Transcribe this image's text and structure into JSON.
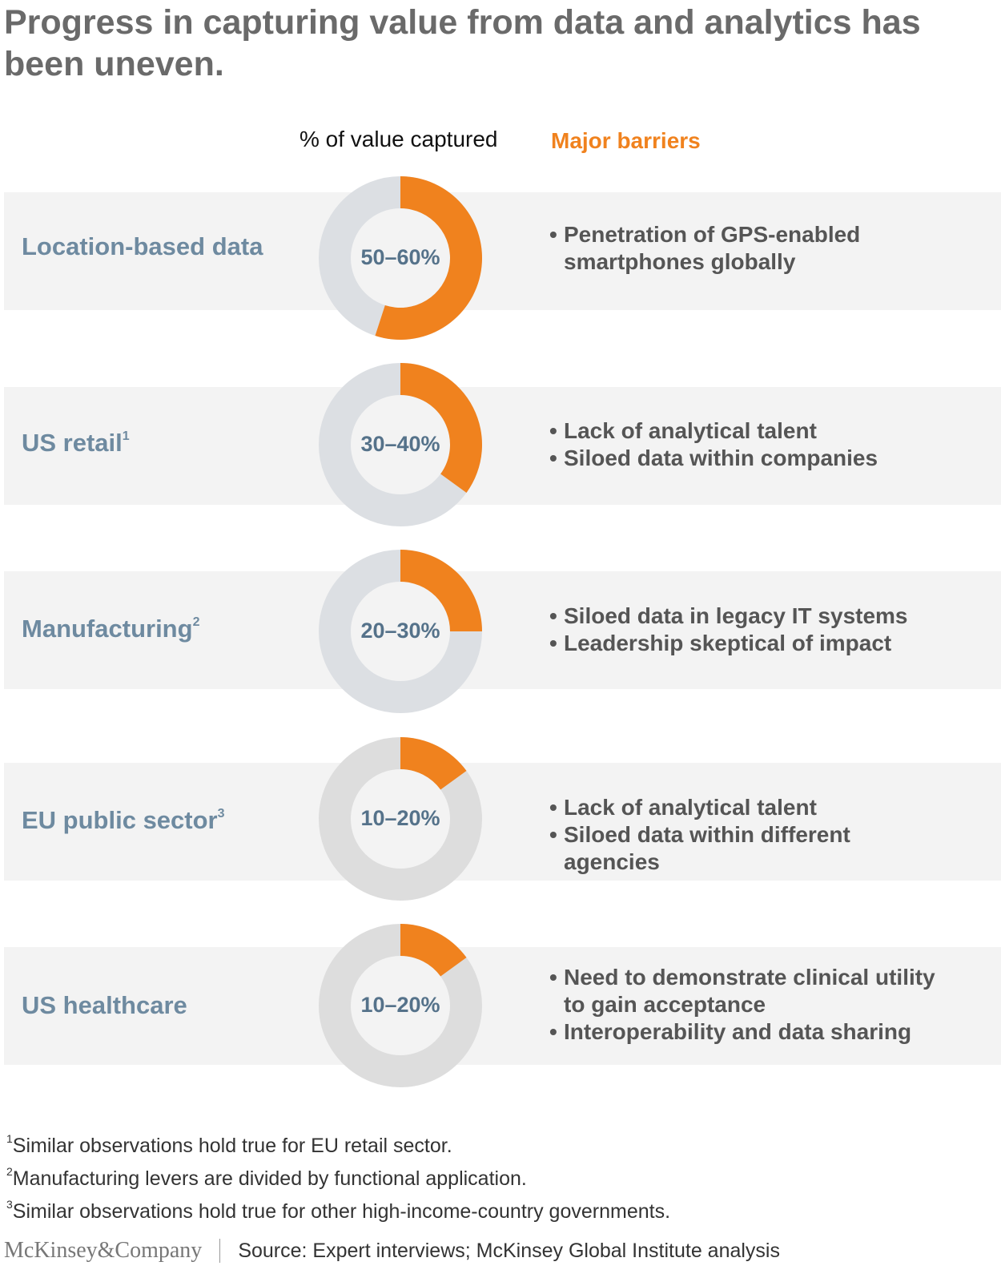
{
  "title": "Progress in capturing value from data and analytics has been uneven.",
  "headers": {
    "value": "% of value captured",
    "barriers": "Major barriers"
  },
  "colors": {
    "captured": "#f0821e",
    "remaining": "#dcdfe3",
    "remaining_light": "#dddddd",
    "label": "#6e8aa0",
    "band": "#f3f3f3"
  },
  "rows": [
    {
      "label": "Location-based data",
      "footnote": "",
      "range_label": "50–60%",
      "barriers": [
        "Penetration of GPS-enabled smartphones globally"
      ]
    },
    {
      "label": "US retail",
      "footnote": "1",
      "range_label": "30–40%",
      "barriers": [
        "Lack of analytical talent",
        "Siloed data within companies"
      ]
    },
    {
      "label": "Manufacturing",
      "footnote": "2",
      "range_label": "20–30%",
      "barriers": [
        "Siloed data in legacy IT systems",
        "Leadership skeptical of impact"
      ]
    },
    {
      "label": "EU public sector",
      "footnote": "3",
      "range_label": "10–20%",
      "barriers": [
        "Lack of analytical talent",
        "Siloed data within different agencies"
      ]
    },
    {
      "label": "US healthcare",
      "footnote": "",
      "range_label": "10–20%",
      "barriers": [
        "Need to demonstrate clinical utility to gain acceptance",
        "Interoperability and data sharing"
      ]
    }
  ],
  "chart_data": {
    "type": "pie",
    "categories": [
      "Location-based data",
      "US retail",
      "Manufacturing",
      "EU public sector",
      "US healthcare"
    ],
    "series": [
      {
        "name": "% of value captured",
        "low": [
          50,
          30,
          20,
          10,
          10
        ],
        "high": [
          60,
          40,
          30,
          20,
          20
        ],
        "values": [
          55,
          35,
          25,
          15,
          15
        ]
      }
    ]
  },
  "footnotes": [
    {
      "mark": "1",
      "text": "Similar observations hold true for EU retail sector."
    },
    {
      "mark": "2",
      "text": "Manufacturing levers are divided by functional application."
    },
    {
      "mark": "3",
      "text": "Similar observations hold true for other high-income-country governments."
    }
  ],
  "footer": {
    "logo": "McKinsey&Company",
    "source": "Source: Expert interviews; McKinsey Global Institute analysis"
  }
}
